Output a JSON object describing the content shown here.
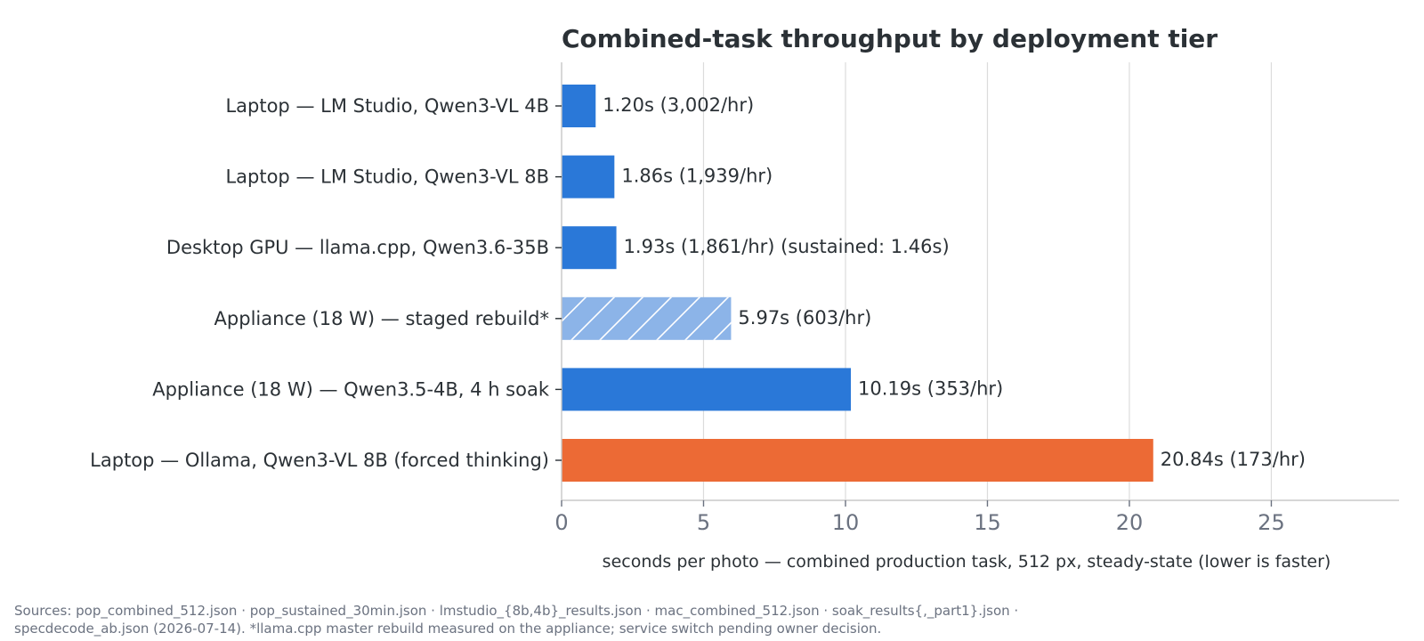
{
  "chart_data": {
    "type": "bar",
    "orientation": "horizontal",
    "title": "Combined-task throughput by deployment tier",
    "xlabel": "seconds per photo — combined production task, 512 px, steady-state (lower is faster)",
    "xlim": [
      0,
      29.5
    ],
    "xticks": [
      0,
      5,
      10,
      15,
      20,
      25
    ],
    "grid": "vertical",
    "categories": [
      "Laptop — LM Studio, Qwen3-VL 4B",
      "Laptop — LM Studio, Qwen3-VL 8B",
      "Desktop GPU — llama.cpp, Qwen3.6-35B",
      "Appliance (18 W) — staged rebuild*",
      "Appliance (18 W) — Qwen3.5-4B, 4 h soak",
      "Laptop — Ollama, Qwen3-VL 8B (forced thinking)"
    ],
    "values": [
      1.2,
      1.86,
      1.93,
      5.97,
      10.19,
      20.84
    ],
    "value_labels": [
      "1.20s  (3,002/hr)",
      "1.86s  (1,939/hr)",
      "1.93s  (1,861/hr)  (sustained: 1.46s)",
      "5.97s  (603/hr)",
      "10.19s  (353/hr)",
      "20.84s  (173/hr)"
    ],
    "bar_styles": [
      "solid",
      "solid",
      "solid",
      "hatched",
      "solid",
      "solid"
    ],
    "bar_colors": [
      "#2a78d8",
      "#2a78d8",
      "#2a78d8",
      "#8cb4e8",
      "#2a78d8",
      "#ec6a35"
    ]
  },
  "footer": {
    "sources_line1": "Sources: pop_combined_512.json · pop_sustained_30min.json · lmstudio_{8b,4b}_results.json · mac_combined_512.json · soak_results{,_part1}.json ·",
    "sources_line2": "specdecode_ab.json (2026-07-14).  *llama.cpp master rebuild measured on the appliance; service switch pending owner decision."
  }
}
